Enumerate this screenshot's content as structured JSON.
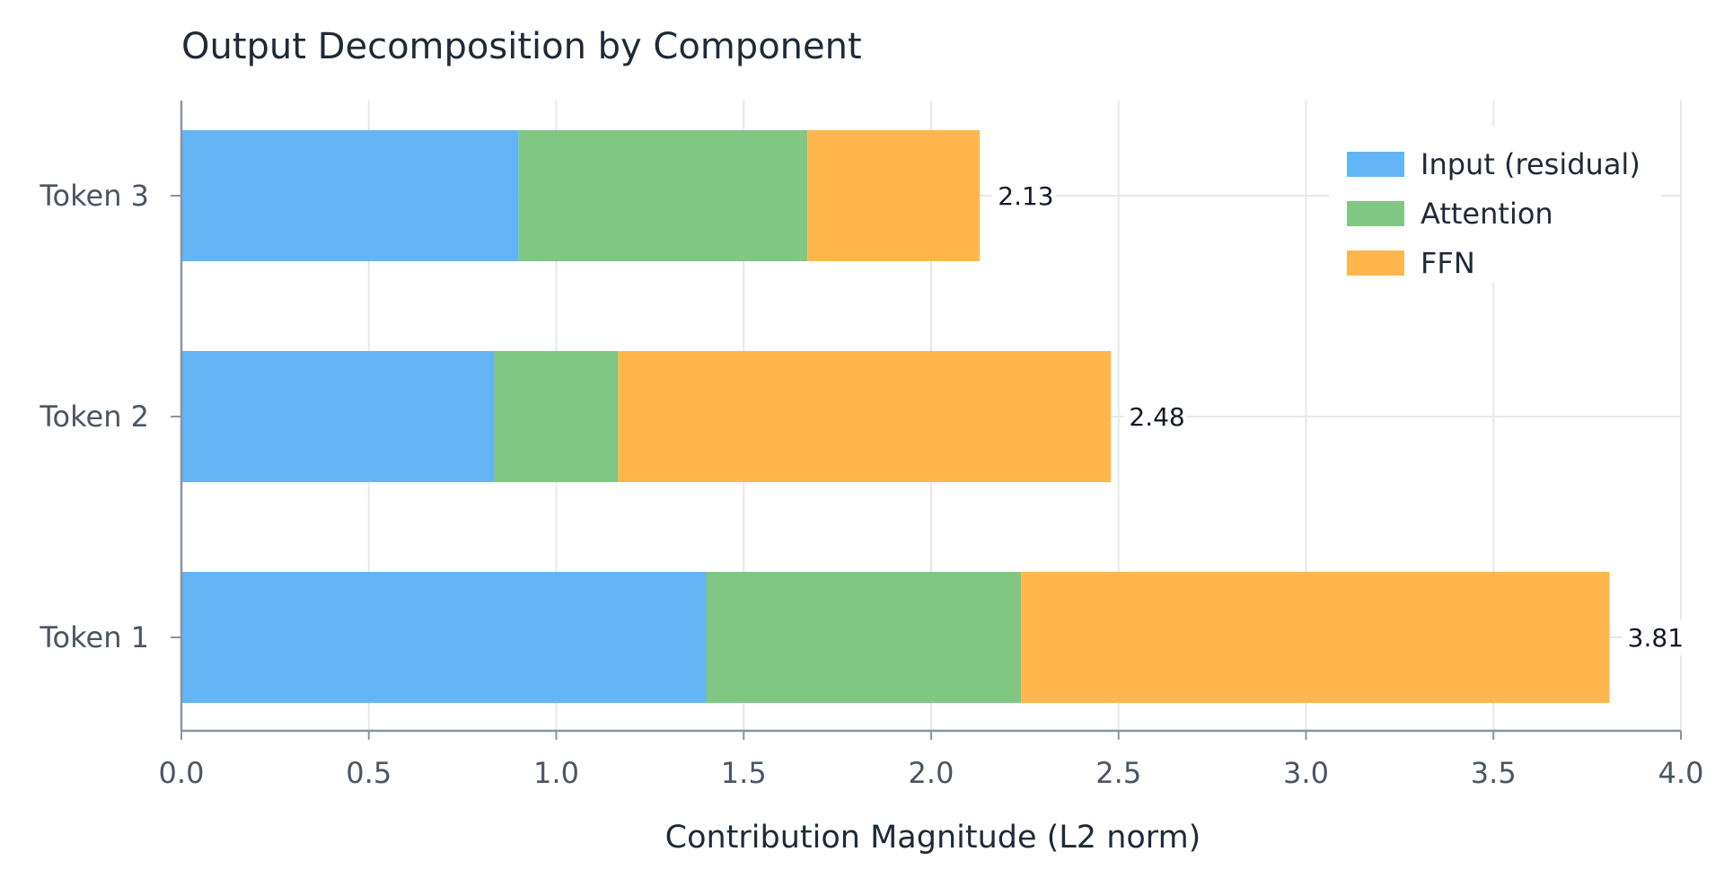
{
  "chart_data": {
    "type": "bar",
    "orientation": "horizontal",
    "stacked": true,
    "title": "Output Decomposition by Component",
    "xlabel": "Contribution Magnitude (L2 norm)",
    "ylabel": "",
    "xlim": [
      0,
      4
    ],
    "xticks": [
      "0.0",
      "0.5",
      "1.0",
      "1.5",
      "2.0",
      "2.5",
      "3.0",
      "3.5",
      "4.0"
    ],
    "categories": [
      "Token 1",
      "Token 2",
      "Token 3"
    ],
    "series": [
      {
        "name": "Input (residual)",
        "color": "#64b5f6",
        "values": [
          1.4,
          0.835,
          0.9
        ]
      },
      {
        "name": "Attention",
        "color": "#81c784",
        "values": [
          0.84,
          0.33,
          0.77
        ]
      },
      {
        "name": "FFN",
        "color": "#ffb74d",
        "values": [
          1.57,
          1.315,
          0.46
        ]
      }
    ],
    "totals": [
      "3.81",
      "2.48",
      "2.13"
    ],
    "grid": true,
    "legend_position": "top-right"
  }
}
